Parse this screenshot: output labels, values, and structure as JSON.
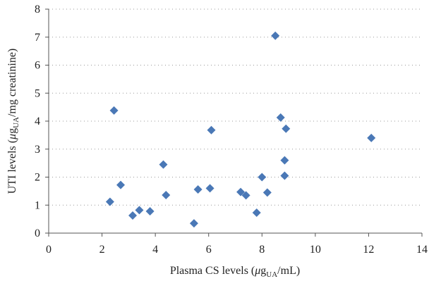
{
  "chart_data": {
    "type": "scatter",
    "xlabel": {
      "main": "Plasma CS levels (",
      "mu": "μ",
      "g": "g",
      "sub": "UA",
      "tail": "/mL)"
    },
    "ylabel": {
      "main": "UTI levels (",
      "mu": "μ",
      "g": "g",
      "sub": "UA",
      "tail": "/mg creatinine)"
    },
    "xlim": [
      0,
      14
    ],
    "ylim": [
      0,
      8
    ],
    "x_ticks": [
      0,
      2,
      4,
      6,
      8,
      10,
      12,
      14
    ],
    "y_ticks": [
      0,
      1,
      2,
      3,
      4,
      5,
      6,
      7,
      8
    ],
    "grid": "horizontal-dotted",
    "marker_color": "#4a78b6",
    "marker": "diamond",
    "points": [
      {
        "x": 2.3,
        "y": 1.12
      },
      {
        "x": 2.45,
        "y": 4.38
      },
      {
        "x": 2.7,
        "y": 1.72
      },
      {
        "x": 3.15,
        "y": 0.63
      },
      {
        "x": 3.4,
        "y": 0.82
      },
      {
        "x": 3.8,
        "y": 0.78
      },
      {
        "x": 4.3,
        "y": 2.45
      },
      {
        "x": 4.4,
        "y": 1.36
      },
      {
        "x": 5.45,
        "y": 0.35
      },
      {
        "x": 5.6,
        "y": 1.56
      },
      {
        "x": 6.05,
        "y": 1.6
      },
      {
        "x": 6.1,
        "y": 3.68
      },
      {
        "x": 7.2,
        "y": 1.47
      },
      {
        "x": 7.4,
        "y": 1.35
      },
      {
        "x": 7.8,
        "y": 0.73
      },
      {
        "x": 8.0,
        "y": 2.0
      },
      {
        "x": 8.2,
        "y": 1.45
      },
      {
        "x": 8.5,
        "y": 7.05
      },
      {
        "x": 8.7,
        "y": 4.13
      },
      {
        "x": 8.85,
        "y": 2.6
      },
      {
        "x": 8.85,
        "y": 2.05
      },
      {
        "x": 8.9,
        "y": 3.73
      },
      {
        "x": 12.1,
        "y": 3.4
      }
    ]
  }
}
